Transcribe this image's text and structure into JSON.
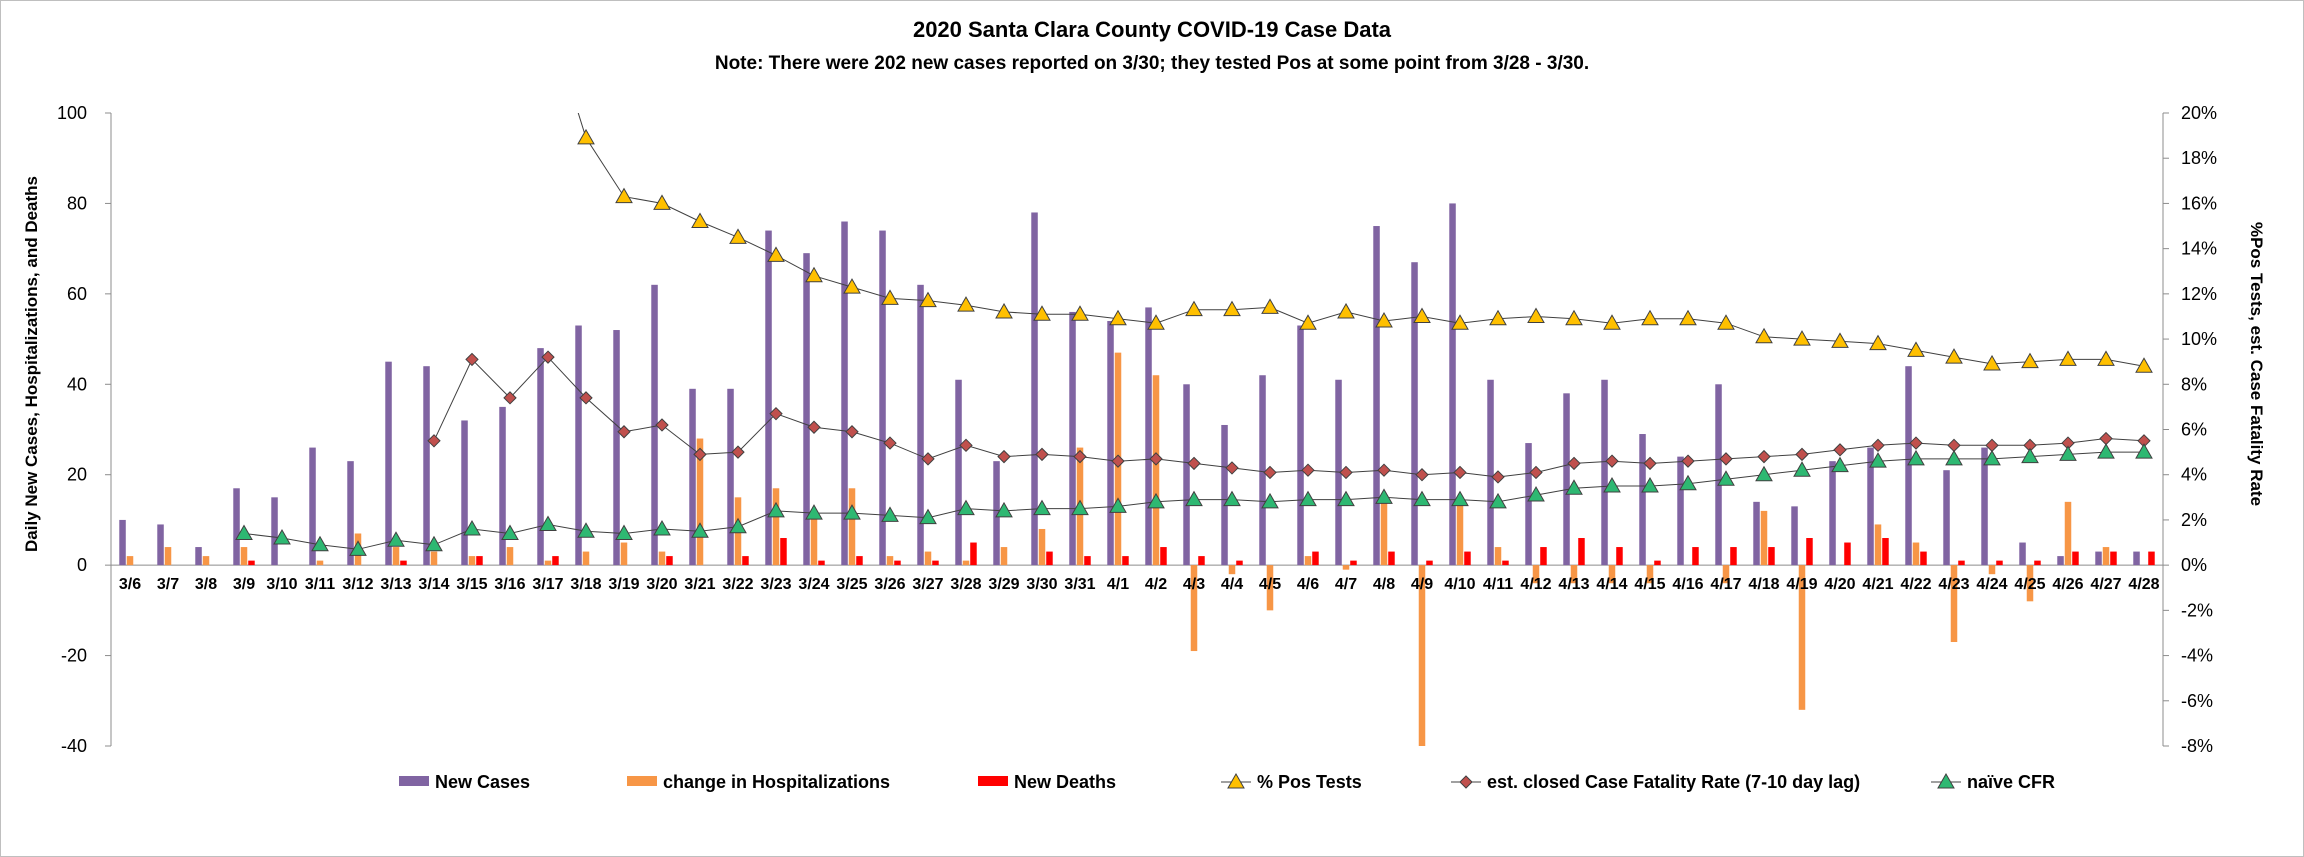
{
  "chart_data": {
    "type": "bar",
    "title": "2020 Santa Clara County COVID-19 Case Data",
    "subtitle": "Note:  There were 202 new cases reported on 3/30; they tested Pos at some point from 3/28 - 3/30.",
    "ylabel": "Daily New Cases, Hospitalizations, and Deaths",
    "y2label": "%Pos Tests, est. Case Fatality Rate",
    "ylim": [
      -40,
      100
    ],
    "yticks": [
      "100",
      "80",
      "60",
      "40",
      "20",
      "0",
      "-20",
      "-40"
    ],
    "y2lim": [
      -8,
      20
    ],
    "y2ticks": [
      "20%",
      "18%",
      "16%",
      "14%",
      "12%",
      "10%",
      "8%",
      "6%",
      "4%",
      "2%",
      "0%",
      "-2%",
      "-4%",
      "-6%",
      "-8%"
    ],
    "categories": [
      "3/6",
      "3/7",
      "3/8",
      "3/9",
      "3/10",
      "3/11",
      "3/12",
      "3/13",
      "3/14",
      "3/15",
      "3/16",
      "3/17",
      "3/18",
      "3/19",
      "3/20",
      "3/21",
      "3/22",
      "3/23",
      "3/24",
      "3/25",
      "3/26",
      "3/27",
      "3/28",
      "3/29",
      "3/30",
      "3/31",
      "4/1",
      "4/2",
      "4/3",
      "4/4",
      "4/5",
      "4/6",
      "4/7",
      "4/8",
      "4/9",
      "4/10",
      "4/11",
      "4/12",
      "4/13",
      "4/14",
      "4/15",
      "4/16",
      "4/17",
      "4/18",
      "4/19",
      "4/20",
      "4/21",
      "4/22",
      "4/23",
      "4/24",
      "4/25",
      "4/26",
      "4/27",
      "4/28"
    ],
    "bar_series": [
      {
        "name": "New Cases",
        "color": "#8064A2",
        "values": [
          10,
          9,
          4,
          17,
          15,
          26,
          23,
          45,
          44,
          32,
          35,
          48,
          53,
          52,
          62,
          39,
          39,
          74,
          69,
          76,
          74,
          62,
          41,
          23,
          78,
          56,
          54,
          57,
          40,
          31,
          42,
          53,
          41,
          75,
          67,
          80,
          41,
          27,
          38,
          41,
          29,
          24,
          40,
          14,
          13,
          23,
          26,
          44,
          21,
          26,
          5,
          2,
          3,
          3
        ]
      },
      {
        "name": "change in Hospitalizations",
        "color": "#F79646",
        "values": [
          2,
          4,
          2,
          4,
          0,
          1,
          7,
          4,
          3,
          2,
          4,
          1,
          3,
          5,
          3,
          28,
          15,
          17,
          11,
          17,
          2,
          3,
          1,
          4,
          8,
          26,
          47,
          42,
          -19,
          -2,
          -10,
          2,
          -1,
          15,
          -40,
          15,
          4,
          -4,
          -4,
          -4,
          -4,
          0,
          -4,
          12,
          -32,
          0,
          9,
          5,
          -17,
          -2,
          -8,
          14,
          4,
          0
        ]
      },
      {
        "name": "New Deaths",
        "color": "#FF0000",
        "values": [
          0,
          0,
          0,
          1,
          0,
          0,
          0,
          1,
          0,
          2,
          0,
          2,
          0,
          0,
          2,
          0,
          2,
          6,
          1,
          2,
          1,
          1,
          5,
          0,
          3,
          2,
          2,
          4,
          2,
          1,
          0,
          3,
          1,
          3,
          1,
          3,
          1,
          4,
          6,
          4,
          1,
          4,
          4,
          4,
          6,
          5,
          6,
          3,
          1,
          1,
          1,
          3,
          3,
          3
        ]
      }
    ],
    "line_series": [
      {
        "name": "% Pos Tests",
        "color": "#FFC000",
        "marker": "triangle",
        "values": [
          null,
          null,
          null,
          null,
          null,
          null,
          null,
          null,
          null,
          null,
          null,
          null,
          18.9,
          16.3,
          16.0,
          15.2,
          14.5,
          13.7,
          12.8,
          12.3,
          11.8,
          11.7,
          11.5,
          11.2,
          11.1,
          11.1,
          10.9,
          10.7,
          11.3,
          11.3,
          11.4,
          10.7,
          11.2,
          10.8,
          11.0,
          10.7,
          10.9,
          11.0,
          10.9,
          10.7,
          10.9,
          10.9,
          10.7,
          10.1,
          10.0,
          9.9,
          9.8,
          9.5,
          9.2,
          8.9,
          9.0,
          9.1,
          9.1,
          8.8
        ]
      },
      {
        "name": "est. closed Case Fatality Rate (7-10 day lag)",
        "color": "#C0504D",
        "marker": "diamond",
        "values": [
          null,
          null,
          null,
          null,
          null,
          null,
          null,
          null,
          5.5,
          9.1,
          7.4,
          9.2,
          7.4,
          5.9,
          6.2,
          4.9,
          5.0,
          6.7,
          6.1,
          5.9,
          5.4,
          4.7,
          5.3,
          4.8,
          4.9,
          4.8,
          4.6,
          4.7,
          4.5,
          4.3,
          4.1,
          4.2,
          4.1,
          4.2,
          4.0,
          4.1,
          3.9,
          4.1,
          4.5,
          4.6,
          4.5,
          4.6,
          4.7,
          4.8,
          4.9,
          5.1,
          5.3,
          5.4,
          5.3,
          5.3,
          5.3,
          5.4,
          5.6,
          5.5
        ]
      },
      {
        "name": "naïve CFR",
        "color": "#4BACC6",
        "marker": "triangle-green",
        "values": [
          null,
          null,
          null,
          1.4,
          1.2,
          0.9,
          0.7,
          1.1,
          0.9,
          1.6,
          1.4,
          1.8,
          1.5,
          1.4,
          1.6,
          1.5,
          1.7,
          2.4,
          2.3,
          2.3,
          2.2,
          2.1,
          2.5,
          2.4,
          2.5,
          2.5,
          2.6,
          2.8,
          2.9,
          2.9,
          2.8,
          2.9,
          2.9,
          3.0,
          2.9,
          2.9,
          2.8,
          3.1,
          3.4,
          3.5,
          3.5,
          3.6,
          3.8,
          4.0,
          4.2,
          4.4,
          4.6,
          4.7,
          4.7,
          4.7,
          4.8,
          4.9,
          5.0,
          5.0
        ]
      }
    ],
    "legend": [
      "New Cases",
      "change in Hospitalizations",
      "New Deaths",
      "% Pos Tests",
      "est. closed Case Fatality Rate (7-10 day lag)",
      "naïve CFR"
    ],
    "legend_position": "bottom",
    "grid": false
  }
}
